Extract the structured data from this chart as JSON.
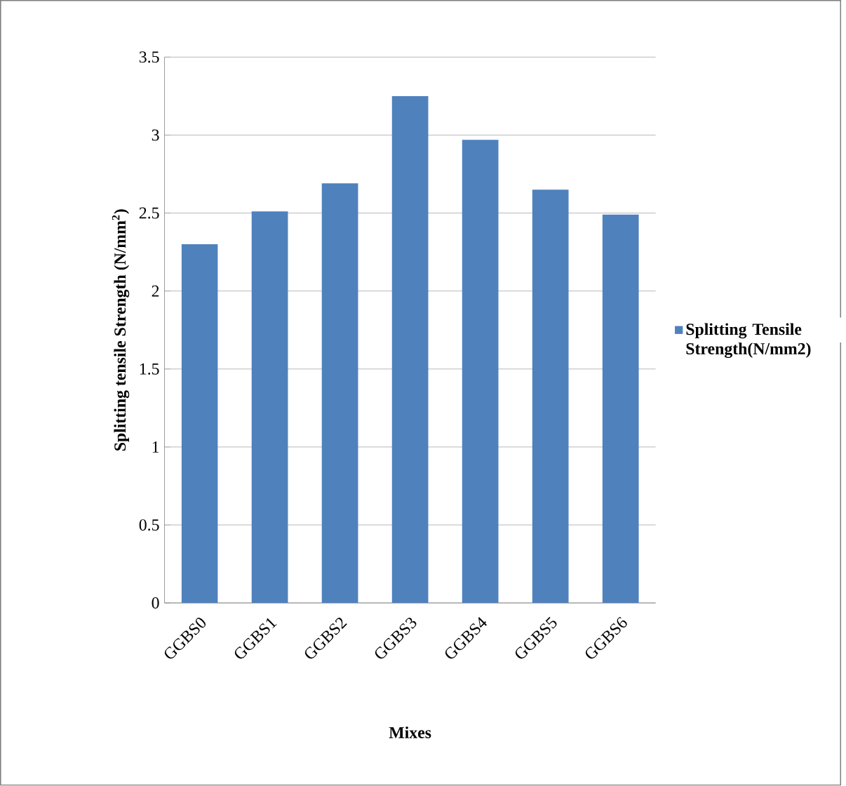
{
  "chart_data": {
    "type": "bar",
    "xlabel": "Mixes",
    "ylabel": "Splitting tensile Strength (N/mm$^{2}$)",
    "categories": [
      "GGBS0",
      "GGBS1",
      "GGBS2",
      "GGBS3",
      "GGBS4",
      "GGBS5",
      "GGBS6"
    ],
    "series": [
      {
        "name": "Splitting Tensile Strength(N/mm2)",
        "color": "#4f81bd",
        "values": [
          2.3,
          2.51,
          2.69,
          3.25,
          2.97,
          2.65,
          2.49
        ]
      }
    ],
    "ylim": [
      0,
      3.5
    ],
    "yticks": [
      0,
      0.5,
      1,
      1.5,
      2,
      2.5,
      3,
      3.5
    ],
    "grid": "y",
    "legend": "right"
  }
}
